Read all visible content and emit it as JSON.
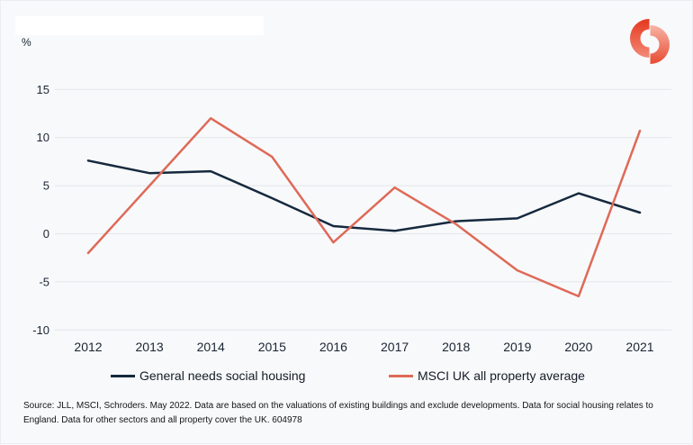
{
  "header": {
    "unit_label": "%"
  },
  "chart_data": {
    "type": "line",
    "title": "",
    "xlabel": "",
    "ylabel": "%",
    "categories": [
      "2012",
      "2013",
      "2014",
      "2015",
      "2016",
      "2017",
      "2018",
      "2019",
      "2020",
      "2021"
    ],
    "yticks": [
      15,
      10,
      5,
      0,
      -5,
      -10
    ],
    "ylim": [
      -10,
      15
    ],
    "grid": true,
    "legend_position": "bottom",
    "series": [
      {
        "name": "General needs social housing",
        "color": "#15293E",
        "values": [
          7.6,
          6.3,
          6.5,
          3.7,
          0.8,
          0.3,
          1.3,
          1.6,
          4.2,
          2.2
        ]
      },
      {
        "name": "MSCI UK all property average",
        "color": "#DE6A58",
        "values": [
          -2.0,
          5.0,
          12.0,
          8.0,
          -0.9,
          4.8,
          1.0,
          -3.8,
          -6.5,
          10.7
        ]
      }
    ]
  },
  "footer": {
    "source_text": "Source: JLL, MSCI, Schroders. May 2022. Data are based on the valuations of existing buildings and exclude developments. Data for social housing relates to England. Data for other sectors and all property cover the UK. 604978"
  },
  "colors": {
    "background": "#F8F9FB",
    "gridline": "#E3E5EA",
    "axis_text": "#1A2533",
    "logo_left_top": "#E5381F",
    "logo_left_bottom": "#F28A77",
    "logo_right_top": "#F7B3A6",
    "logo_right_bottom": "#E84C31"
  }
}
